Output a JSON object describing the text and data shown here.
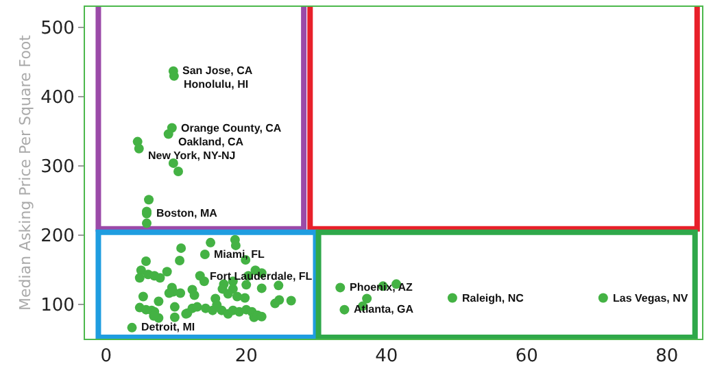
{
  "chart_data": {
    "type": "scatter",
    "ylabel": "Median Asking Price Per Square Foot",
    "xlim": [
      -3,
      85
    ],
    "ylim": [
      50,
      530
    ],
    "xticks": [
      0,
      20,
      40,
      60,
      80
    ],
    "yticks": [
      100,
      200,
      300,
      400,
      500
    ],
    "grid": false,
    "marker": "circle",
    "series": [
      {
        "color": "#44b244",
        "x": [
          9.6,
          9.7,
          9.4,
          8.9,
          4.5,
          4.7,
          9.6,
          10.3,
          6.1,
          5.8,
          5.8,
          5.8,
          14.9,
          18.4,
          18.5,
          10.7,
          14.1,
          10.5,
          5.7,
          19.9,
          5.0,
          6.0,
          6.9,
          7.7,
          8.7,
          4.8,
          13.4,
          14.0,
          21.3,
          22.2,
          20.3,
          18.1,
          16.8,
          16.6,
          20.0,
          22.2,
          24.6,
          9.4,
          9.6,
          9.0,
          10.6,
          12.3,
          12.6,
          18.1,
          17.4,
          18.7,
          19.8,
          15.6,
          5.3,
          7.5,
          24.7,
          24.1,
          26.4,
          4.8,
          5.7,
          6.5,
          6.9,
          9.8,
          7.5,
          6.8,
          11.6,
          12.3,
          13.0,
          14.2,
          15.2,
          15.8,
          16.5,
          17.4,
          18.1,
          19.0,
          20.0,
          20.8,
          21.1,
          21.6,
          22.2,
          9.8,
          11.4,
          3.7,
          33.4,
          39.5,
          41.4,
          37.2,
          36.6,
          34.0,
          49.4,
          70.9
        ],
        "values": [
          437,
          430,
          355,
          346,
          335,
          325,
          304,
          292,
          251,
          234,
          231,
          217,
          189,
          193,
          185,
          181,
          172,
          163,
          162,
          164,
          149,
          143,
          141,
          138,
          147,
          138,
          141,
          133,
          149,
          145,
          141,
          133,
          129,
          122,
          128,
          123,
          127,
          124,
          118,
          116,
          116,
          121,
          113,
          122,
          115,
          111,
          109,
          108,
          111,
          104,
          106,
          101,
          105,
          95,
          92,
          91,
          89,
          96,
          80,
          83,
          87,
          94,
          96,
          94,
          91,
          99,
          91,
          86,
          91,
          89,
          92,
          89,
          81,
          84,
          82,
          81,
          86,
          66,
          124,
          126,
          129,
          108,
          97,
          92,
          109,
          109
        ]
      }
    ],
    "annotations": [
      {
        "text": "San Jose, CA",
        "x": 9.6,
        "y": 437
      },
      {
        "text": "Honolulu, HI",
        "x": 9.7,
        "y": 430
      },
      {
        "text": "Orange County, CA",
        "x": 9.4,
        "y": 355
      },
      {
        "text": "Oakland, CA",
        "x": 8.9,
        "y": 346
      },
      {
        "text": "New York, NY-NJ",
        "x": 4.7,
        "y": 325
      },
      {
        "text": "Boston, MA",
        "x": 5.8,
        "y": 231
      },
      {
        "text": "Miami, FL",
        "x": 14.1,
        "y": 172
      },
      {
        "text": "Fort Lauderdale, FL",
        "x": 13.4,
        "y": 141
      },
      {
        "text": "Detroit, MI",
        "x": 3.7,
        "y": 66
      },
      {
        "text": "Phoenix, AZ",
        "x": 33.4,
        "y": 124
      },
      {
        "text": "Atlanta, GA",
        "x": 34.0,
        "y": 92
      },
      {
        "text": "Raleigh, NC",
        "x": 49.4,
        "y": 109
      },
      {
        "text": "Las Vegas, NV",
        "x": 70.9,
        "y": 109
      }
    ]
  }
}
